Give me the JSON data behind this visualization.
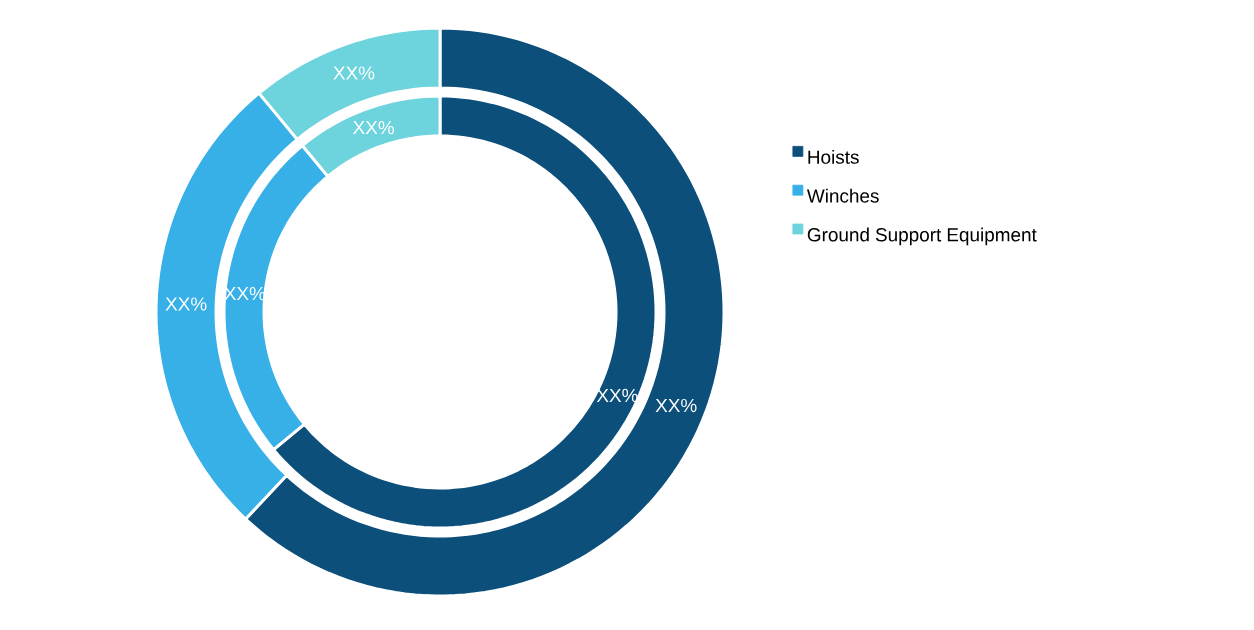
{
  "chart_data": {
    "type": "donut",
    "categories": [
      "Hoists",
      "Winches",
      "Ground Support Equipment"
    ],
    "colors": [
      "#0d4f7b",
      "#36b0e6",
      "#6dd3dc"
    ],
    "series": [
      {
        "values": [
          62,
          27,
          11
        ],
        "value_labels": [
          "XX%",
          "XX%",
          "XX%"
        ]
      },
      {
        "values": [
          64,
          25,
          11
        ],
        "value_labels": [
          "XX%",
          "XX%",
          "XX%"
        ]
      }
    ],
    "legend": "right"
  }
}
